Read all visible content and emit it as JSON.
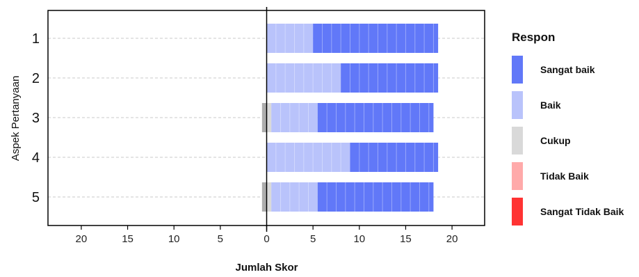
{
  "chart_data": {
    "type": "bar",
    "orientation": "horizontal",
    "stacked": "diverging",
    "xlabel": "Jumlah Skor",
    "ylabel": "Aspek Pertanyaan",
    "xlim": [
      -24,
      23.5
    ],
    "xticks": [
      -20,
      -15,
      -10,
      -5,
      0,
      5,
      10,
      15,
      20
    ],
    "xtick_labels": [
      "20",
      "15",
      "10",
      "5",
      "0",
      "5",
      "10",
      "15",
      "20"
    ],
    "categories": [
      "1",
      "2",
      "3",
      "4",
      "5"
    ],
    "series": [
      {
        "name": "Sangat baik",
        "color": "#6178F8",
        "values": [
          13.5,
          10.5,
          12.5,
          9.5,
          12.5
        ]
      },
      {
        "name": "Baik",
        "color": "#B9C3FB",
        "values": [
          5,
          8,
          5,
          9,
          5
        ]
      },
      {
        "name": "Cukup",
        "color": "#D9D9D9",
        "values": [
          0,
          0,
          1,
          0,
          1
        ]
      },
      {
        "name": "Tidak Baik",
        "color": "#FFAAAA",
        "values": [
          0,
          0,
          0,
          0,
          0
        ]
      },
      {
        "name": "Sangat Tidak Baik",
        "color": "#FF3333",
        "values": [
          0,
          0,
          0,
          0,
          0
        ]
      }
    ],
    "legend": {
      "title": "Respon",
      "position": "right"
    },
    "grid": {
      "horizontal": true,
      "vertical": false
    }
  }
}
